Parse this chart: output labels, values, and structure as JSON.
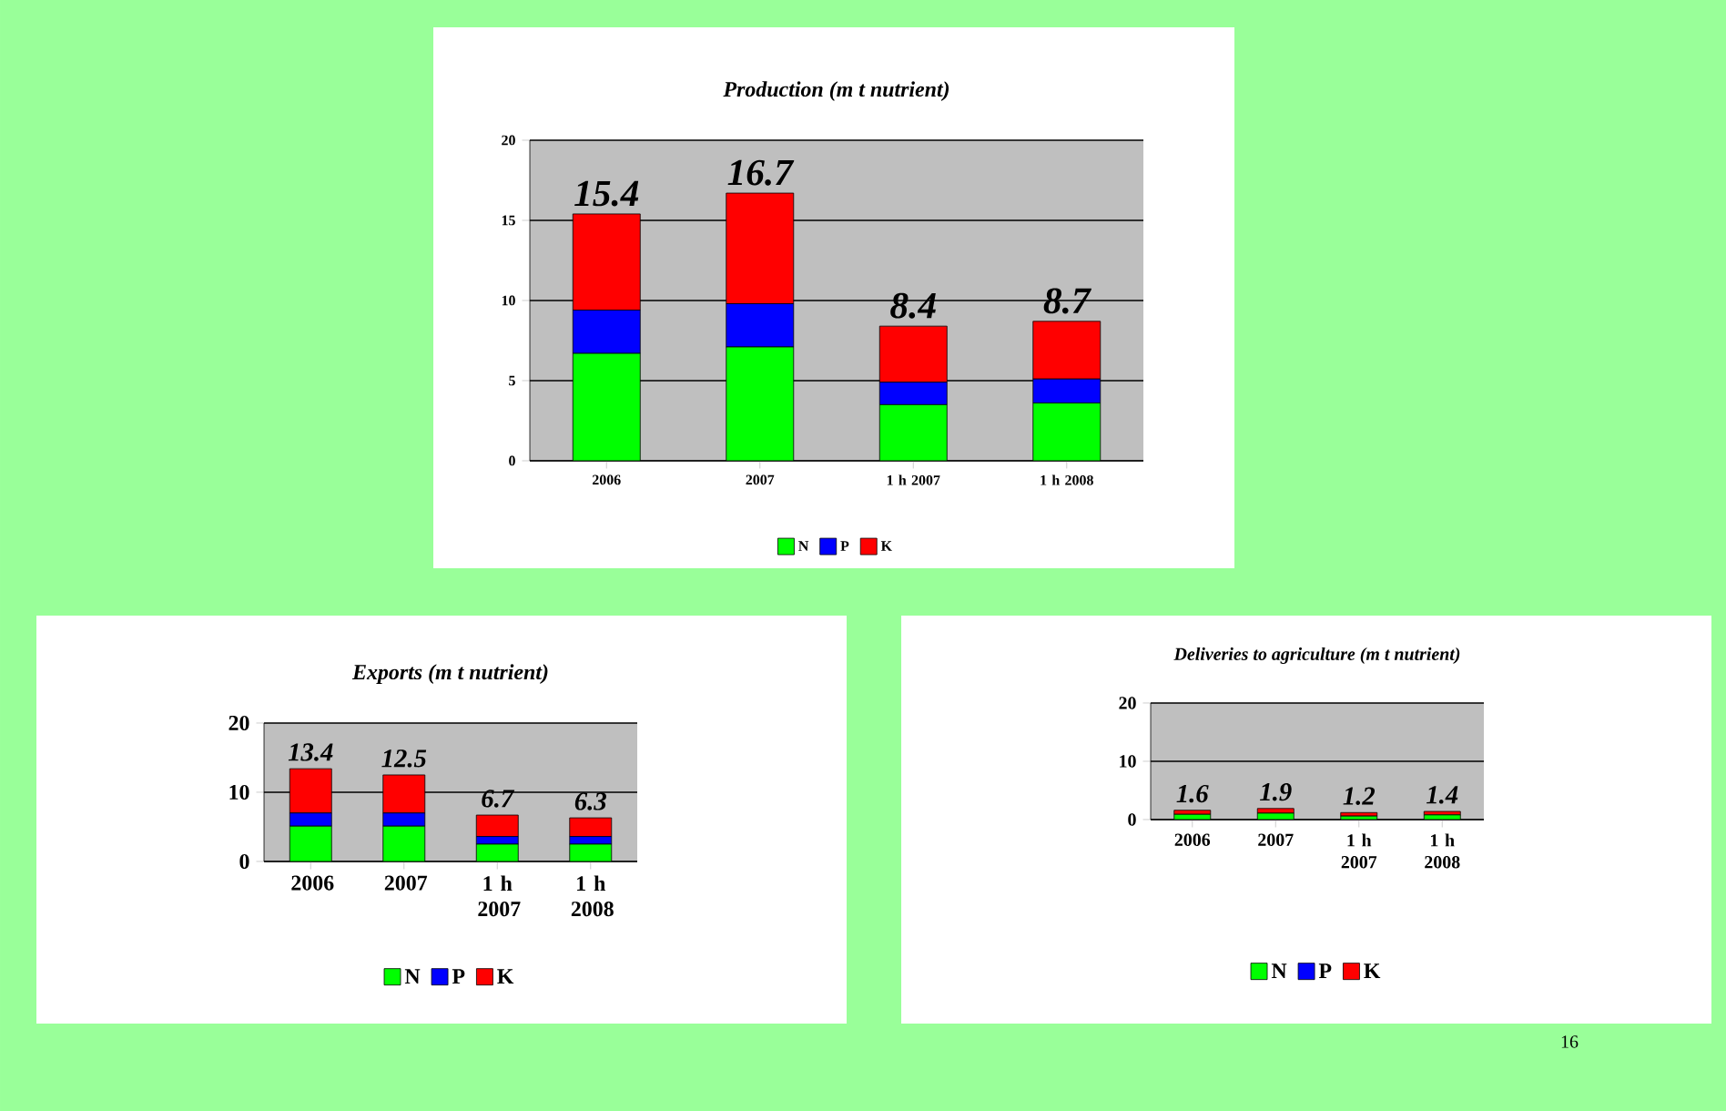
{
  "chart_data": [
    {
      "type": "bar",
      "title": "Production (m t nutrient)",
      "categories": [
        "2006",
        "2007",
        "1 h 2007",
        "1 h 2008"
      ],
      "stacked": true,
      "ylim": [
        0,
        20
      ],
      "yticks": [
        0,
        5,
        10,
        15,
        20
      ],
      "grid": "y",
      "legend": "bottom",
      "series": [
        {
          "name": "N",
          "color": "#00ff00",
          "values": [
            6.7,
            7.1,
            3.5,
            3.6
          ]
        },
        {
          "name": "P",
          "color": "#0000ff",
          "values": [
            2.7,
            2.7,
            1.4,
            1.5
          ]
        },
        {
          "name": "K",
          "color": "#ff0000",
          "values": [
            6.0,
            6.9,
            3.5,
            3.6
          ]
        }
      ],
      "totals": [
        "15.4",
        "16.7",
        "8.4",
        "8.7"
      ]
    },
    {
      "type": "bar",
      "title": "Exports (m t nutrient)",
      "categories": [
        "2006",
        "2007",
        "1 h 2007",
        "1 h 2008"
      ],
      "stacked": true,
      "ylim": [
        0,
        20
      ],
      "yticks": [
        0,
        10,
        20
      ],
      "grid": "y",
      "legend": "bottom",
      "series": [
        {
          "name": "N",
          "color": "#00ff00",
          "values": [
            5.1,
            5.1,
            2.5,
            2.5
          ]
        },
        {
          "name": "P",
          "color": "#0000ff",
          "values": [
            1.9,
            1.9,
            1.1,
            1.1
          ]
        },
        {
          "name": "K",
          "color": "#ff0000",
          "values": [
            6.4,
            5.5,
            3.1,
            2.7
          ]
        }
      ],
      "totals": [
        "13.4",
        "12.5",
        "6.7",
        "6.3"
      ]
    },
    {
      "type": "bar",
      "title": "Deliveries to agriculture (m t nutrient)",
      "categories": [
        "2006",
        "2007",
        "1 h 2007",
        "1 h 2008"
      ],
      "stacked": true,
      "ylim": [
        0,
        20
      ],
      "yticks": [
        0,
        10,
        20
      ],
      "grid": "y",
      "legend": "bottom",
      "series": [
        {
          "name": "N",
          "color": "#00ff00",
          "values": [
            0.9,
            1.1,
            0.6,
            0.8
          ]
        },
        {
          "name": "P",
          "color": "#0000ff",
          "values": [
            null,
            null,
            null,
            null
          ]
        },
        {
          "name": "K",
          "color": "#ff0000",
          "values": [
            0.7,
            0.8,
            0.6,
            0.6
          ]
        }
      ],
      "totals": [
        "1.6",
        "1.9",
        "1.2",
        "1.4"
      ],
      "annotations": [
        "16"
      ]
    }
  ]
}
